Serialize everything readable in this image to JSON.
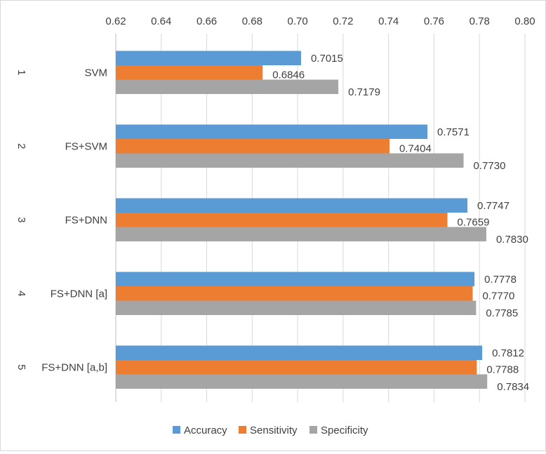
{
  "chart_data": {
    "type": "bar",
    "orientation": "horizontal",
    "title": "",
    "xlabel": "",
    "ylabel": "",
    "xlim": [
      0.62,
      0.8
    ],
    "x_ticks": [
      "0.62",
      "0.64",
      "0.66",
      "0.68",
      "0.70",
      "0.72",
      "0.74",
      "0.76",
      "0.78",
      "0.80"
    ],
    "tick_values": [
      0.62,
      0.64,
      0.66,
      0.68,
      0.7,
      0.72,
      0.74,
      0.76,
      0.78,
      0.8
    ],
    "axis_position": "top",
    "grid": true,
    "legend_position": "bottom",
    "category_numbers": [
      "1",
      "2",
      "3",
      "4",
      "5"
    ],
    "categories": [
      "SVM",
      "FS+SVM",
      "FS+DNN",
      "FS+DNN [a]",
      "FS+DNN [a,b]"
    ],
    "series": [
      {
        "name": "Accuracy",
        "color": "#5b9bd5",
        "values": [
          0.7015,
          0.7571,
          0.7747,
          0.7778,
          0.7812
        ],
        "labels": [
          "0.7015",
          "0.7571",
          "0.7747",
          "0.7778",
          "0.7812"
        ]
      },
      {
        "name": "Sensitivity",
        "color": "#ed7d31",
        "values": [
          0.6846,
          0.7404,
          0.7659,
          0.777,
          0.7788
        ],
        "labels": [
          "0.6846",
          "0.7404",
          "0.7659",
          "0.7770",
          "0.7788"
        ]
      },
      {
        "name": "Specificity",
        "color": "#a5a5a5",
        "values": [
          0.7179,
          0.773,
          0.783,
          0.7785,
          0.7834
        ],
        "labels": [
          "0.7179",
          "0.7730",
          "0.7830",
          "0.7785",
          "0.7834"
        ]
      }
    ]
  }
}
